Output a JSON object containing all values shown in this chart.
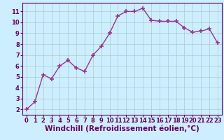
{
  "x": [
    0,
    1,
    2,
    3,
    4,
    5,
    6,
    7,
    8,
    9,
    10,
    11,
    12,
    13,
    14,
    15,
    16,
    17,
    18,
    19,
    20,
    21,
    22,
    23
  ],
  "y": [
    2.0,
    2.7,
    5.2,
    4.8,
    6.0,
    6.5,
    5.8,
    5.5,
    7.0,
    7.8,
    9.0,
    10.6,
    11.0,
    11.0,
    11.3,
    10.2,
    10.1,
    10.1,
    10.1,
    9.5,
    9.1,
    9.2,
    9.4,
    8.1
  ],
  "line_color": "#993399",
  "marker": "+",
  "marker_size": 4,
  "marker_linewidth": 1.2,
  "line_width": 1.0,
  "bg_color": "#cceeff",
  "grid_color": "#aacccc",
  "xlabel": "Windchill (Refroidissement éolien,°C)",
  "xlabel_color": "#660066",
  "title": "",
  "xlim": [
    -0.5,
    23.5
  ],
  "ylim": [
    1.5,
    11.8
  ],
  "xticks": [
    0,
    1,
    2,
    3,
    4,
    5,
    6,
    7,
    8,
    9,
    10,
    11,
    12,
    13,
    14,
    15,
    16,
    17,
    18,
    19,
    20,
    21,
    22,
    23
  ],
  "yticks": [
    2,
    3,
    4,
    5,
    6,
    7,
    8,
    9,
    10,
    11
  ],
  "tick_fontsize": 6,
  "xlabel_fontsize": 7.5
}
